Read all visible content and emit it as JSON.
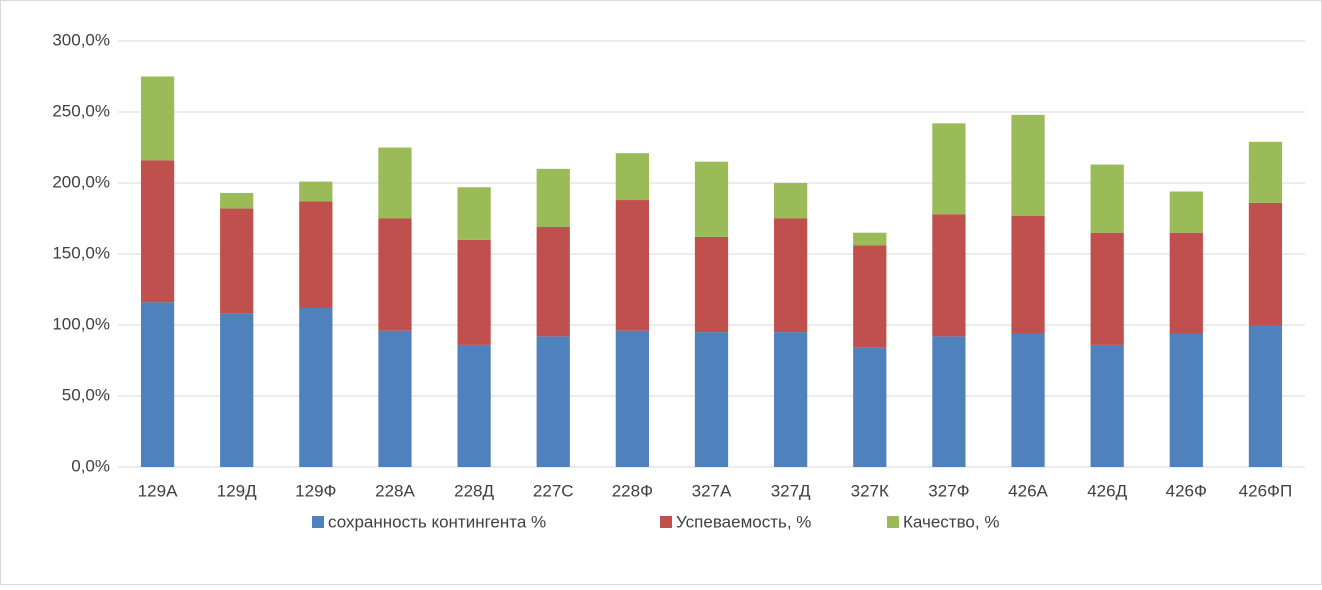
{
  "chart_data": {
    "type": "stacked_bar",
    "categories": [
      "129А",
      "129Д",
      "129Ф",
      "228А",
      "228Д",
      "227С",
      "228Ф",
      "327А",
      "327Д",
      "327К",
      "327Ф",
      "426А",
      "426Д",
      "426Ф",
      "426ФП"
    ],
    "series": [
      {
        "name": "сохранность контингента %",
        "color": "#4f81bd",
        "values": [
          116,
          108,
          112,
          96,
          86,
          92,
          96,
          95,
          95,
          84,
          92,
          94,
          86,
          94,
          100
        ]
      },
      {
        "name": "Успеваемость, %",
        "color": "#c0504d",
        "values": [
          100,
          74,
          75,
          79,
          74,
          77,
          92,
          67,
          80,
          72,
          86,
          83,
          79,
          71,
          86
        ]
      },
      {
        "name": "Качество, %",
        "color": "#9bbb59",
        "values": [
          59,
          11,
          14,
          50,
          37,
          41,
          33,
          53,
          25,
          9,
          64,
          71,
          48,
          29,
          43
        ]
      }
    ],
    "ylim": [
      0,
      300
    ],
    "yticks": [
      {
        "value": 0,
        "label": "0,0%"
      },
      {
        "value": 50,
        "label": "50,0%"
      },
      {
        "value": 100,
        "label": "100,0%"
      },
      {
        "value": 150,
        "label": "150,0%"
      },
      {
        "value": 200,
        "label": "200,0%"
      },
      {
        "value": 250,
        "label": "250,0%"
      },
      {
        "value": 300,
        "label": "300,0%"
      }
    ],
    "grid": true,
    "legend": "bottom"
  }
}
